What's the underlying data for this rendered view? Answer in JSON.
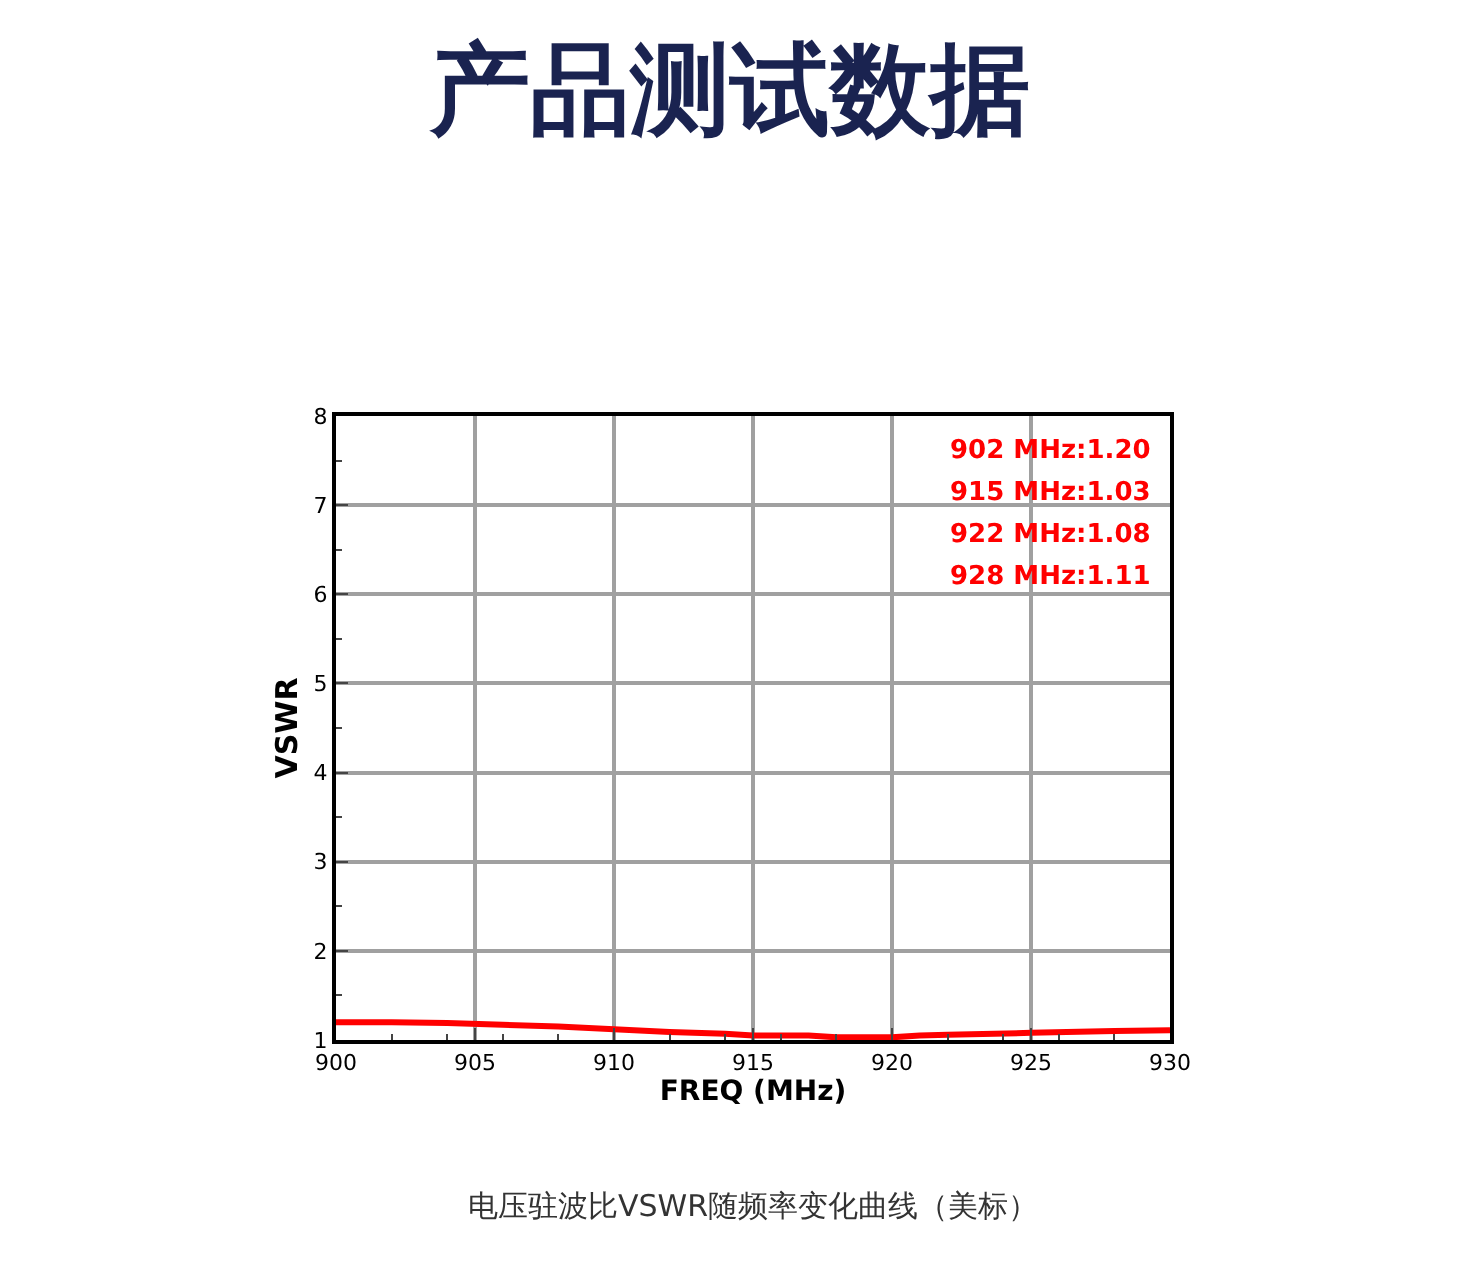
{
  "chart_data": {
    "type": "line",
    "title": "产品测试数据",
    "xlabel": "FREQ (MHz)",
    "ylabel": "VSWR",
    "x": [
      900,
      902,
      904,
      906,
      908,
      910,
      912,
      914,
      915,
      917,
      918,
      920,
      921,
      922,
      925,
      928,
      930
    ],
    "series": [
      {
        "color": "#ff0000",
        "values": [
          1.2,
          1.2,
          1.19,
          1.17,
          1.15,
          1.12,
          1.09,
          1.07,
          1.05,
          1.05,
          1.03,
          1.03,
          1.05,
          1.06,
          1.08,
          1.1,
          1.11
        ]
      }
    ],
    "xlim": [
      900,
      930
    ],
    "xticks": [
      900,
      905,
      910,
      915,
      920,
      925,
      930
    ],
    "ylim": [
      1,
      8
    ],
    "yticks": [
      1,
      2,
      3,
      4,
      5,
      6,
      7,
      8
    ],
    "grid": true,
    "marker": "none",
    "line_style": "solid",
    "annotations": [
      "902 MHz:1.20",
      "915 MHz:1.03",
      "922 MHz:1.08",
      "928 MHz:1.11",
      "电压驻波比VSWR随频率变化曲线（美标）"
    ]
  }
}
